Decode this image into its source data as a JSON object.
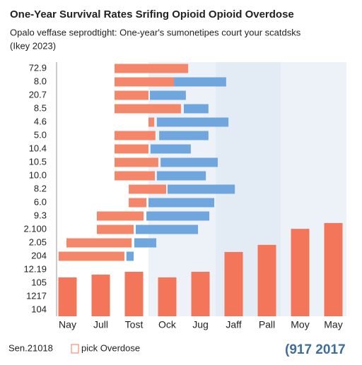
{
  "chart_data": {
    "type": "mixed",
    "title": "One-Year Survival Rates Srifing Opioid Opioid Overdose",
    "subtitle": "Opalo veffase seprodtight: One-year's sumonetipes court your scatdsks",
    "subtitle2": "(Ikey 2023)",
    "row_labels": [
      "72.9",
      "8.0",
      "20.7",
      "8.5",
      "4.6",
      "5.0",
      "10.4",
      "10.5",
      "10.0",
      "8.2",
      "6.0",
      "9.3",
      "2.100",
      "2.05",
      "204",
      "12.19",
      "105",
      "1217",
      "104"
    ],
    "xlim": [
      0,
      100
    ],
    "range_series": [
      {
        "color": "#f4876a",
        "start": [
          20.0,
          20.0,
          20.0,
          20.0,
          31.7,
          20.0,
          20.0,
          20.0,
          20.0,
          24.9,
          24.9,
          13.9,
          13.9,
          3.4,
          0.7,
          null,
          null,
          null,
          null
        ],
        "end": [
          45.4,
          40.5,
          31.7,
          42.9,
          33.7,
          34.1,
          31.7,
          35.1,
          33.9,
          37.8,
          31.0,
          30.0,
          26.6,
          25.9,
          23.4,
          null,
          null,
          null,
          null
        ]
      },
      {
        "color": "#6fa6de",
        "start": [
          null,
          40.5,
          32.2,
          43.9,
          34.6,
          35.4,
          32.4,
          35.9,
          34.6,
          38.3,
          31.7,
          31.0,
          27.3,
          26.8,
          24.1,
          null,
          null,
          null,
          null
        ],
        "end": [
          null,
          58.5,
          44.6,
          52.4,
          59.3,
          52.4,
          46.3,
          55.6,
          51.5,
          61.5,
          54.4,
          52.7,
          48.8,
          34.4,
          26.6,
          null,
          null,
          null,
          null
        ]
      }
    ],
    "categories": [
      "Nay",
      "Jull",
      "Tost",
      "Ock",
      "Jug",
      "Jaff",
      "Pall",
      "Moy",
      "May"
    ],
    "values": [
      15.3,
      16.4,
      17.5,
      15.3,
      17.5,
      25.3,
      28.1,
      34.4,
      36.7
    ],
    "color": "#f4765a",
    "ylim": [
      0,
      100
    ],
    "footer_left": "Sen.21018",
    "legend_label": "pick Overdose",
    "footer_right": "(917 2017"
  }
}
